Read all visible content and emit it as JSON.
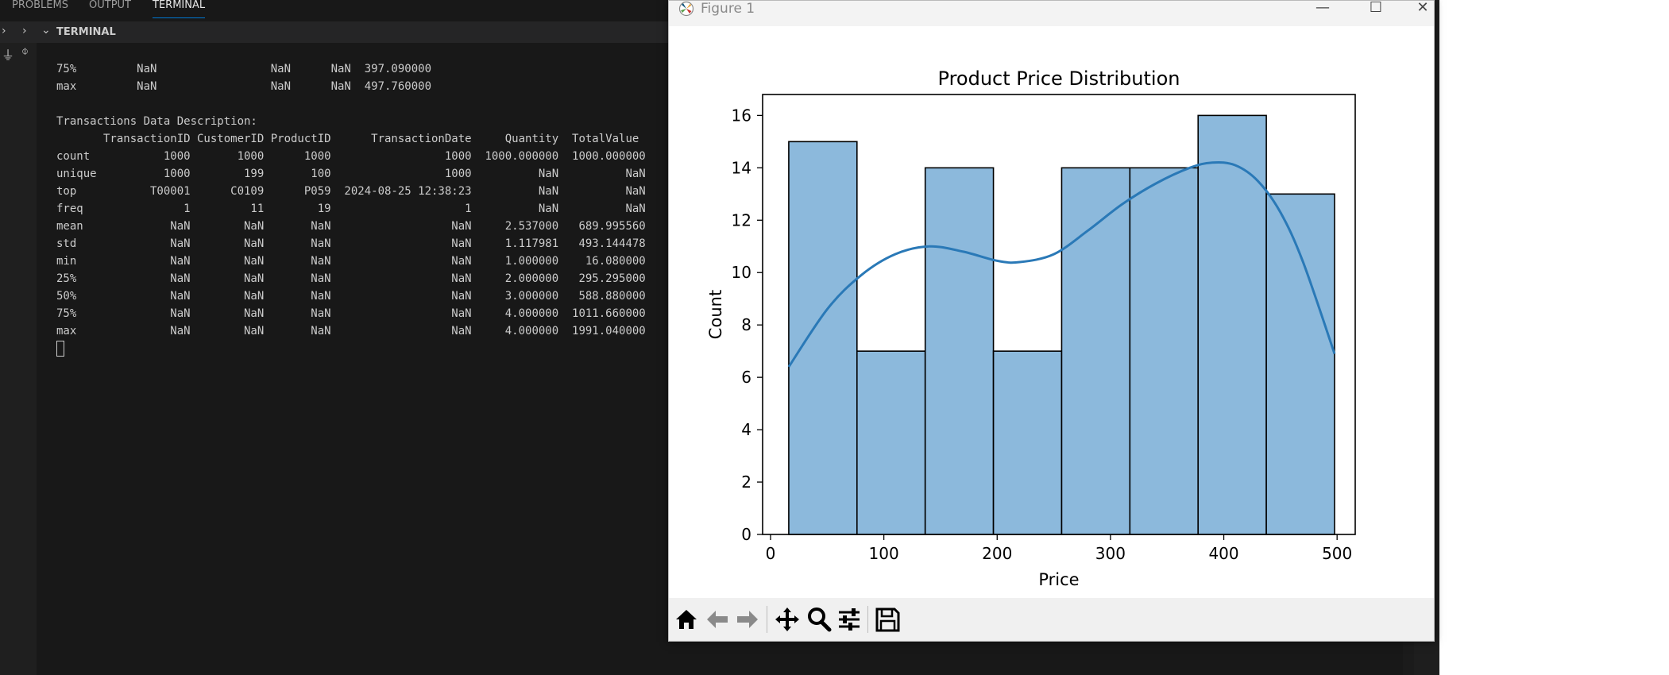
{
  "panel_tabs": [
    "PROBLEMS",
    "OUTPUT",
    "TERMINAL"
  ],
  "terminal_header": "TERMINAL",
  "terminal_lines": [
    "75%         NaN                 NaN      NaN  397.090000",
    "max         NaN                 NaN      NaN  497.760000",
    "",
    "Transactions Data Description:",
    "       TransactionID CustomerID ProductID      TransactionDate     Quantity  TotalValue",
    "count           1000       1000      1000                 1000  1000.000000  1000.000000",
    "unique          1000        199       100                 1000          NaN          NaN",
    "top           T00001      C0109      P059  2024-08-25 12:38:23          NaN          NaN",
    "freq               1         11        19                    1          NaN          NaN",
    "mean             NaN        NaN       NaN                  NaN     2.537000   689.995560",
    "std              NaN        NaN       NaN                  NaN     1.117981   493.144478",
    "min              NaN        NaN       NaN                  NaN     1.000000    16.080000",
    "25%              NaN        NaN       NaN                  NaN     2.000000   295.295000",
    "50%              NaN        NaN       NaN                  NaN     3.000000   588.880000",
    "75%              NaN        NaN       NaN                  NaN     4.000000  1011.660000",
    "max              NaN        NaN       NaN                  NaN     4.000000  1991.040000"
  ],
  "figure_window": {
    "title": "Figure 1",
    "toolbar": [
      "home-icon",
      "back-arrow-icon",
      "forward-arrow-icon",
      "pan-icon",
      "zoom-icon",
      "configure-subplots-icon",
      "save-icon"
    ]
  },
  "chart_data": {
    "type": "bar",
    "title": "Product Price Distribution",
    "xlabel": "Price",
    "ylabel": "Count",
    "bin_edges": [
      16.08,
      76.29,
      136.5,
      196.71,
      256.92,
      317.13,
      377.34,
      437.55,
      497.76
    ],
    "counts": [
      15,
      7,
      14,
      7,
      14,
      14,
      16,
      13
    ],
    "kde": [
      [
        16.08,
        6.4
      ],
      [
        50,
        8.6
      ],
      [
        80,
        9.9
      ],
      [
        110,
        10.7
      ],
      [
        140,
        11.0
      ],
      [
        170,
        10.8
      ],
      [
        200,
        10.45
      ],
      [
        220,
        10.4
      ],
      [
        250,
        10.7
      ],
      [
        280,
        11.6
      ],
      [
        310,
        12.6
      ],
      [
        340,
        13.4
      ],
      [
        370,
        14.0
      ],
      [
        390,
        14.2
      ],
      [
        410,
        14.1
      ],
      [
        430,
        13.5
      ],
      [
        450,
        12.3
      ],
      [
        470,
        10.4
      ],
      [
        497.76,
        6.9
      ]
    ],
    "xlim": [
      -7,
      516
    ],
    "ylim": [
      0,
      16.8
    ],
    "xticks": [
      0,
      100,
      200,
      300,
      400,
      500
    ],
    "yticks": [
      0,
      2,
      4,
      6,
      8,
      10,
      12,
      14,
      16
    ],
    "bar_color": "#8cb9dc",
    "line_color": "#2a79b7",
    "grid": false
  }
}
